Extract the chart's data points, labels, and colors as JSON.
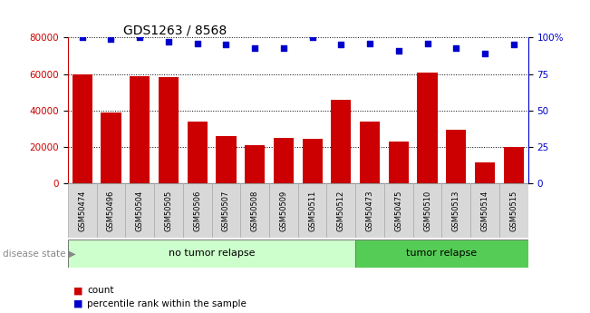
{
  "title": "GDS1263 / 8568",
  "categories": [
    "GSM50474",
    "GSM50496",
    "GSM50504",
    "GSM50505",
    "GSM50506",
    "GSM50507",
    "GSM50508",
    "GSM50509",
    "GSM50511",
    "GSM50512",
    "GSM50473",
    "GSM50475",
    "GSM50510",
    "GSM50513",
    "GSM50514",
    "GSM50515"
  ],
  "counts": [
    60000,
    39000,
    59000,
    58500,
    34000,
    26000,
    21000,
    25000,
    24500,
    46000,
    34000,
    23000,
    61000,
    29500,
    11500,
    20000
  ],
  "percentiles": [
    100,
    99,
    100,
    97,
    96,
    95,
    93,
    93,
    100,
    95,
    96,
    91,
    96,
    93,
    89,
    95
  ],
  "bar_color": "#cc0000",
  "dot_color": "#0000cc",
  "no_tumor_count": 10,
  "tumor_count": 6,
  "no_tumor_label": "no tumor relapse",
  "tumor_label": "tumor relapse",
  "disease_state_label": "disease state",
  "legend_count": "count",
  "legend_percentile": "percentile rank within the sample",
  "ylim_left": [
    0,
    80000
  ],
  "ylim_right": [
    0,
    100
  ],
  "yticks_left": [
    0,
    20000,
    40000,
    60000,
    80000
  ],
  "yticks_right": [
    0,
    25,
    50,
    75,
    100
  ],
  "no_tumor_color": "#ccffcc",
  "tumor_color": "#55cc55",
  "xticklabel_bg": "#d8d8d8",
  "grid_color": "#000000"
}
